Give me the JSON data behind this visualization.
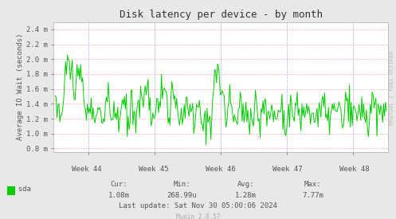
{
  "title": "Disk latency per device - by month",
  "ylabel": "Average IO Wait (seconds)",
  "bg_color": "#e8e8e8",
  "plot_bg_color": "#ffffff",
  "line_color": "#00cc00",
  "grid_color_h": "#ffaaaa",
  "grid_color_v": "#aaaaff",
  "tick_color": "#555555",
  "ytick_labels": [
    "0.8 m",
    "1.0 m",
    "1.2 m",
    "1.4 m",
    "1.6 m",
    "1.8 m",
    "2.0 m",
    "2.2 m",
    "2.4 m"
  ],
  "ytick_values": [
    0.0008,
    0.001,
    0.0012,
    0.0014,
    0.0016,
    0.0018,
    0.002,
    0.0022,
    0.0024
  ],
  "ylim": [
    0.00075,
    0.0025
  ],
  "xtick_labels": [
    "Week 44",
    "Week 45",
    "Week 46",
    "Week 47",
    "Week 48"
  ],
  "legend_label": "sda",
  "legend_color": "#00cc00",
  "stats_cur": "1.08m",
  "stats_min": "268.99u",
  "stats_avg": "1.28m",
  "stats_max": "7.77m",
  "last_update": "Last update: Sat Nov 30 05:00:06 2024",
  "munin_version": "Munin 2.0.57",
  "watermark": "RRDTOOL / TOBI OETIKER",
  "title_color": "#333333",
  "watermark_color": "#bbbbbb",
  "munin_color": "#aaaaaa"
}
